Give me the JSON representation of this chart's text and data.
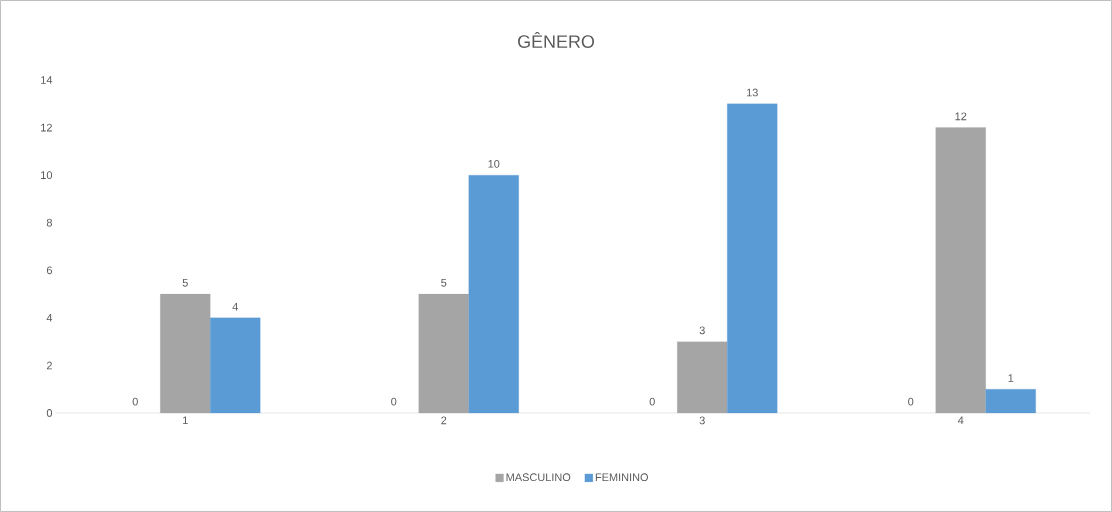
{
  "chart_data": {
    "type": "bar",
    "title": "GÊNERO",
    "categories": [
      "1",
      "2",
      "3",
      "4"
    ],
    "series": [
      {
        "name": "MASCULINO",
        "color": "#a5a5a5",
        "values": [
          5,
          5,
          3,
          12
        ]
      },
      {
        "name": "FEMININO",
        "color": "#5b9bd5",
        "values": [
          4,
          10,
          13,
          1
        ]
      }
    ],
    "ylim": [
      0,
      14
    ],
    "yticks": [
      0,
      2,
      4,
      6,
      8,
      10,
      12,
      14
    ],
    "annotations": [
      "0",
      "0",
      "0",
      "0"
    ],
    "data_labels": true,
    "legend": "bottom",
    "grid": false
  }
}
